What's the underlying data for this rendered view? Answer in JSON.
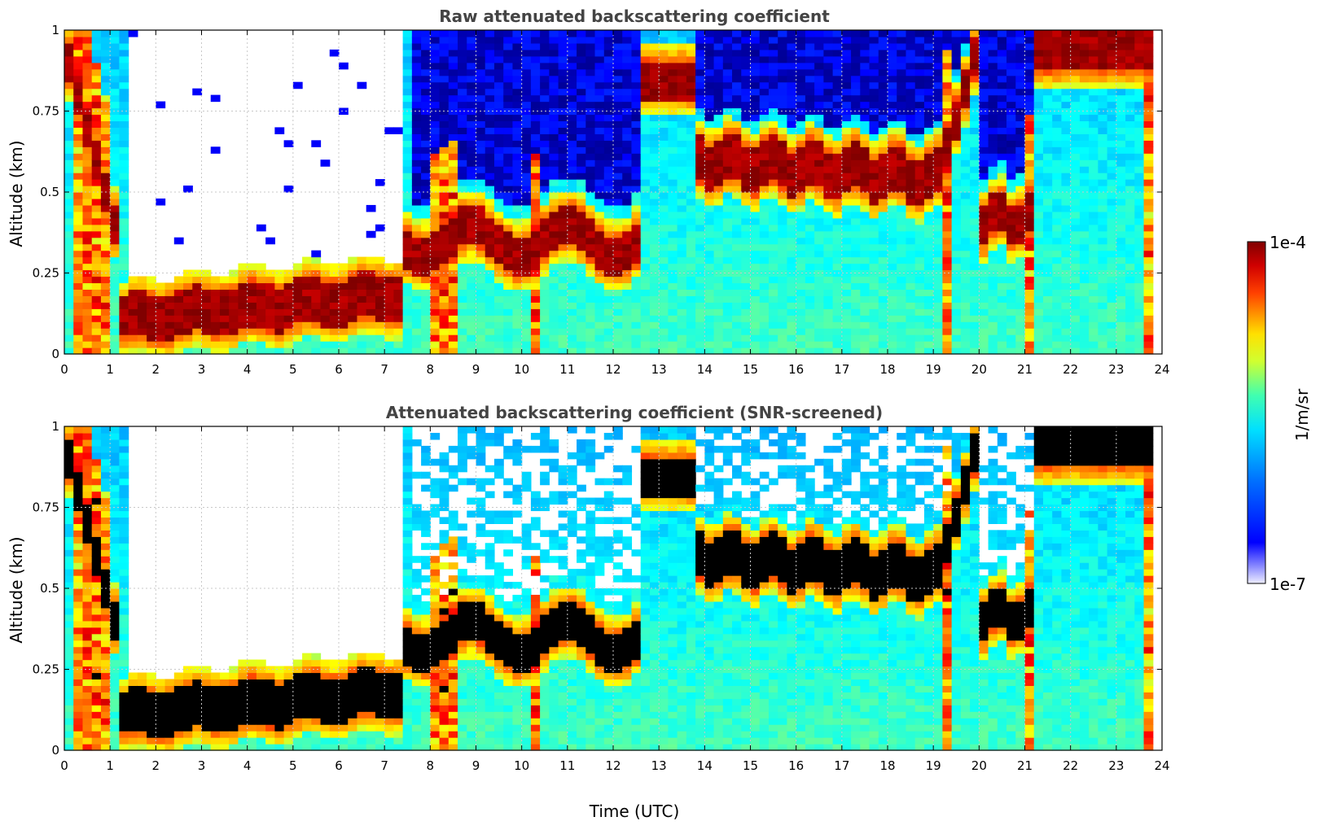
{
  "chart_data": [
    {
      "type": "heatmap",
      "title": "Raw attenuated backscattering coefficient",
      "xlabel": "",
      "ylabel": "Altitude (km)",
      "xlim": [
        0,
        24
      ],
      "ylim": [
        0,
        1
      ],
      "x_ticks": [
        "0",
        "1",
        "2",
        "3",
        "4",
        "5",
        "6",
        "7",
        "8",
        "9",
        "10",
        "11",
        "12",
        "13",
        "14",
        "15",
        "16",
        "17",
        "18",
        "19",
        "20",
        "21",
        "22",
        "23",
        "24"
      ],
      "y_ticks": [
        "0",
        "0.25",
        "0.5",
        "0.75",
        "1"
      ],
      "grid": true,
      "features": [
        {
          "kind": "boundary-layer-aerosol",
          "time_start": 1.5,
          "time_end": 7.0,
          "altitude_km": 0.15,
          "intensity": "1e-4"
        },
        {
          "kind": "cloud-layer",
          "time_start": 13.8,
          "time_end": 19.0,
          "altitude_km": 0.58,
          "intensity": "1e-4"
        },
        {
          "kind": "cloud-layer",
          "time_start": 20.0,
          "time_end": 21.2,
          "altitude_km": 0.4,
          "intensity": "1e-4"
        },
        {
          "kind": "cloud-layer",
          "time_start": 21.2,
          "time_end": 23.8,
          "altitude_km": 0.95,
          "intensity": "1e-4"
        }
      ]
    },
    {
      "type": "heatmap",
      "title": "Attenuated backscattering coefficient (SNR-screened)",
      "xlabel": "Time (UTC)",
      "ylabel": "Altitude (km)",
      "xlim": [
        0,
        24
      ],
      "ylim": [
        0,
        1
      ],
      "x_ticks": [
        "0",
        "1",
        "2",
        "3",
        "4",
        "5",
        "6",
        "7",
        "8",
        "9",
        "10",
        "11",
        "12",
        "13",
        "14",
        "15",
        "16",
        "17",
        "18",
        "19",
        "20",
        "21",
        "22",
        "23",
        "24"
      ],
      "y_ticks": [
        "0",
        "0.25",
        "0.5",
        "0.75",
        "1"
      ],
      "grid": true,
      "screened": true
    }
  ],
  "colorbar": {
    "label": "1/m/sr",
    "max_label": "1e-4",
    "min_label": "1e-7",
    "colormap": "jet"
  },
  "colors": {
    "title_color": "#444444",
    "grid_color": "#c8c8c8",
    "saturated_screened": "#000000"
  }
}
